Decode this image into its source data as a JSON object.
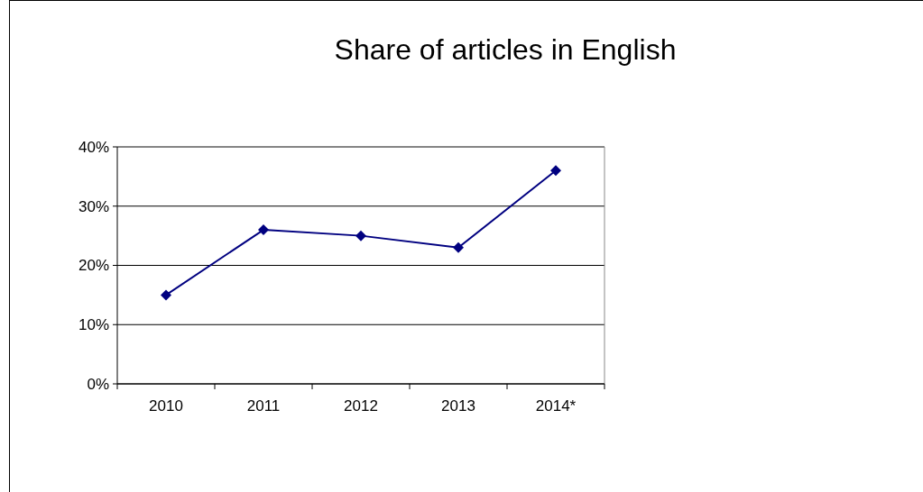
{
  "chart_data": {
    "type": "line",
    "title": "Share of articles in English",
    "categories": [
      "2010",
      "2011",
      "2012",
      "2013",
      "2014*"
    ],
    "series": [
      {
        "color": "#000080",
        "values": [
          15,
          26,
          25,
          23,
          36
        ]
      }
    ],
    "ylim": [
      0,
      40
    ],
    "yticks": [
      {
        "value": 0,
        "label": "0%"
      },
      {
        "value": 10,
        "label": "10%"
      },
      {
        "value": 20,
        "label": "20%"
      },
      {
        "value": 30,
        "label": "30%"
      },
      {
        "value": 40,
        "label": "40%"
      }
    ],
    "grid": "y",
    "marker": "diamond",
    "line_style": "solid"
  }
}
